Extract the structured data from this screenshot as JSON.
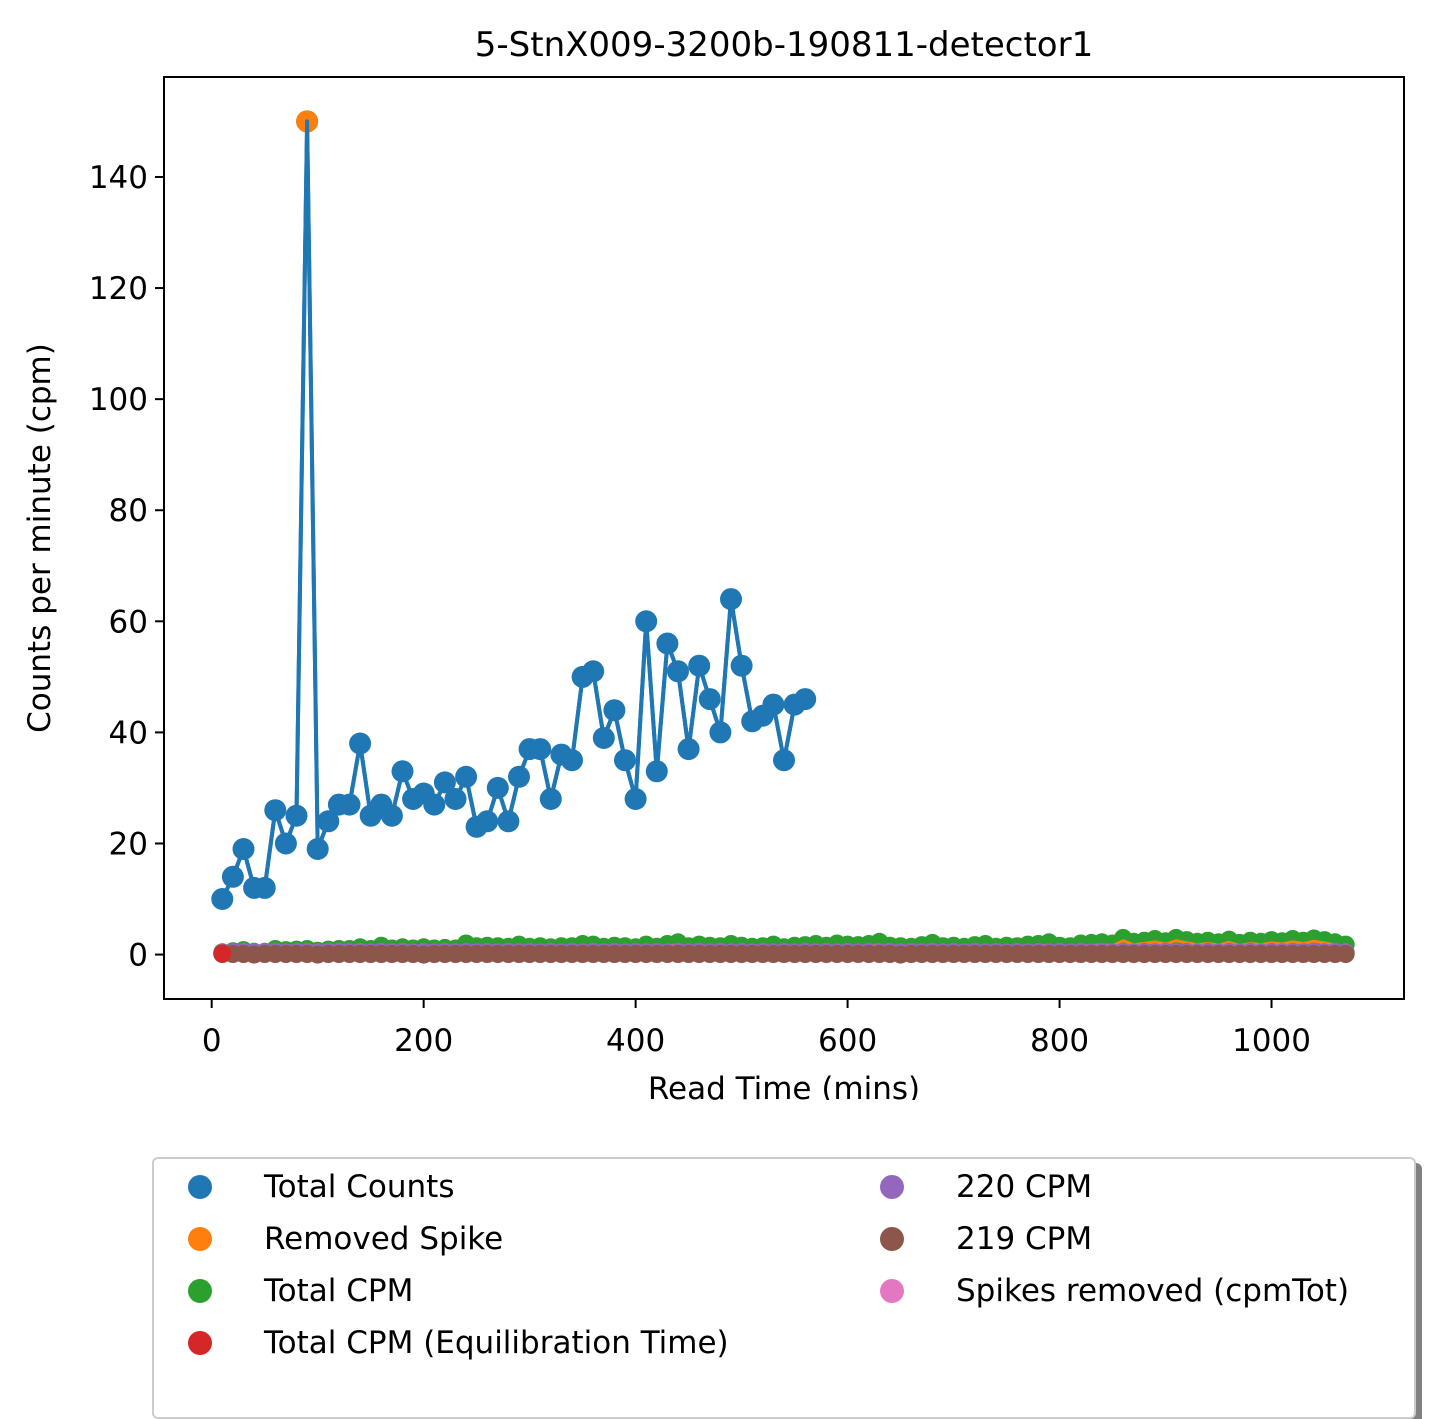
{
  "chart_data": {
    "type": "line",
    "title": "5-StnX009-3200b-190811-detector1",
    "xlabel": "Read Time (mins)",
    "ylabel": "Counts per minute (cpm)",
    "xlim": [
      -45,
      1125
    ],
    "ylim": [
      -8,
      158
    ],
    "xticks": [
      0,
      200,
      400,
      600,
      800,
      1000
    ],
    "yticks": [
      0,
      20,
      40,
      60,
      80,
      100,
      120,
      140
    ],
    "legend_position": "below",
    "series": [
      {
        "name": "Total Counts",
        "color": "#1f77b4",
        "style": "line+markers",
        "x": [
          10,
          20,
          30,
          40,
          50,
          60,
          70,
          80,
          90,
          100,
          110,
          120,
          130,
          140,
          150,
          160,
          170,
          180,
          190,
          200,
          210,
          220,
          230,
          240,
          250,
          260,
          270,
          280,
          290,
          300,
          310,
          320,
          330,
          340,
          350,
          360,
          370,
          380,
          390,
          400,
          410,
          420,
          430,
          440,
          450,
          460,
          470,
          480,
          490,
          500,
          510,
          520,
          530,
          540,
          550,
          560
        ],
        "y": [
          10,
          14,
          19,
          12,
          12,
          26,
          20,
          25,
          150,
          19,
          24,
          27,
          27,
          38,
          25,
          27,
          25,
          33,
          28,
          29,
          27,
          31,
          28,
          32,
          23,
          24,
          30,
          24,
          32,
          37,
          37,
          28,
          36,
          35,
          50,
          51,
          39,
          44,
          35,
          28,
          60,
          33,
          56,
          51,
          37,
          52,
          46,
          40,
          64,
          52,
          42,
          43,
          45,
          35,
          45,
          46
        ]
      },
      {
        "name": "Removed Spike",
        "color": "#ff7f0e",
        "style": "markers",
        "x": [
          90
        ],
        "y": [
          150
        ]
      },
      {
        "name": "Total CPM",
        "color": "#2ca02c",
        "style": "line+markers",
        "x": [
          10,
          20,
          30,
          40,
          50,
          60,
          70,
          80,
          90,
          100,
          110,
          120,
          130,
          140,
          150,
          160,
          170,
          180,
          190,
          200,
          210,
          220,
          230,
          240,
          250,
          260,
          270,
          280,
          290,
          300,
          310,
          320,
          330,
          340,
          350,
          360,
          370,
          380,
          390,
          400,
          410,
          420,
          430,
          440,
          450,
          460,
          470,
          480,
          490,
          500,
          510,
          520,
          530,
          540,
          550,
          560,
          570,
          580,
          590,
          600,
          610,
          620,
          630,
          640,
          650,
          660,
          670,
          680,
          690,
          700,
          710,
          720,
          730,
          740,
          750,
          760,
          770,
          780,
          790,
          800,
          810,
          820,
          830,
          840,
          850,
          860,
          870,
          880,
          890,
          900,
          910,
          920,
          930,
          940,
          950,
          960,
          970,
          980,
          990,
          1000,
          1010,
          1020,
          1030,
          1040,
          1050,
          1060,
          1070
        ],
        "y": [
          0.4,
          0.6,
          0.8,
          0.5,
          0.5,
          1.0,
          0.8,
          0.9,
          1.0,
          0.7,
          0.9,
          1.0,
          1.0,
          1.3,
          1.0,
          1.6,
          1.1,
          1.3,
          1.1,
          1.3,
          1.1,
          1.2,
          1.1,
          2.0,
          1.5,
          1.6,
          1.5,
          1.4,
          1.8,
          1.4,
          1.5,
          1.3,
          1.5,
          1.5,
          1.9,
          1.8,
          1.4,
          1.6,
          1.5,
          1.3,
          1.8,
          1.4,
          1.9,
          2.2,
          1.5,
          1.8,
          1.6,
          1.5,
          1.9,
          1.6,
          1.4,
          1.5,
          1.8,
          1.3,
          1.6,
          1.7,
          1.9,
          1.6,
          2.0,
          1.8,
          1.7,
          1.9,
          2.3,
          1.6,
          1.5,
          1.4,
          1.7,
          2.1,
          1.5,
          1.6,
          1.4,
          1.7,
          1.9,
          1.4,
          1.6,
          1.5,
          1.8,
          1.9,
          2.2,
          1.6,
          1.5,
          2.0,
          2.1,
          2.2,
          2.0,
          3.0,
          2.3,
          2.5,
          2.8,
          2.4,
          3.0,
          2.6,
          2.3,
          2.5,
          2.2,
          2.7,
          2.1,
          2.5,
          2.3,
          2.6,
          2.4,
          2.8,
          2.5,
          2.9,
          2.6,
          2.2,
          1.8
        ]
      },
      {
        "name": "Total CPM (Equilibration Time)",
        "color": "#d62728",
        "style": "markers",
        "x": [
          10
        ],
        "y": [
          0.2
        ]
      },
      {
        "name": "220 CPM",
        "color": "#9467bd",
        "style": "line+markers",
        "x": [
          10,
          20,
          30,
          40,
          50,
          60,
          70,
          80,
          90,
          100,
          110,
          120,
          130,
          140,
          150,
          160,
          170,
          180,
          190,
          200,
          210,
          220,
          230,
          240,
          250,
          260,
          270,
          280,
          290,
          300,
          310,
          320,
          330,
          340,
          350,
          360,
          370,
          380,
          390,
          400,
          410,
          420,
          430,
          440,
          450,
          460,
          470,
          480,
          490,
          500,
          510,
          520,
          530,
          540,
          550,
          560,
          570,
          580,
          590,
          600,
          610,
          620,
          630,
          640,
          650,
          660,
          670,
          680,
          690,
          700,
          710,
          720,
          730,
          740,
          750,
          760,
          770,
          780,
          790,
          800,
          810,
          820,
          830,
          840,
          850,
          860,
          870,
          880,
          890,
          900,
          910,
          920,
          930,
          940,
          950,
          960,
          970,
          980,
          990,
          1000,
          1010,
          1020,
          1030,
          1040,
          1050,
          1060,
          1070
        ],
        "y": [
          0.3,
          0.4,
          0.5,
          0.4,
          0.4,
          0.5,
          0.4,
          0.5,
          0.5,
          0.4,
          0.5,
          0.5,
          0.5,
          0.5,
          0.4,
          0.5,
          0.4,
          0.5,
          0.4,
          0.5,
          0.4,
          0.5,
          0.4,
          0.5,
          0.4,
          0.5,
          0.4,
          0.5,
          0.4,
          0.5,
          0.4,
          0.5,
          0.4,
          0.5,
          0.4,
          0.5,
          0.4,
          0.5,
          0.4,
          0.5,
          0.4,
          0.5,
          0.4,
          0.5,
          0.4,
          0.5,
          0.4,
          0.5,
          0.4,
          0.5,
          0.4,
          0.5,
          0.4,
          0.5,
          0.4,
          0.5,
          0.4,
          0.5,
          0.4,
          0.5,
          0.4,
          0.5,
          0.4,
          0.5,
          0.4,
          0.5,
          0.4,
          0.5,
          0.4,
          0.5,
          0.4,
          0.5,
          0.4,
          0.5,
          0.4,
          0.5,
          0.4,
          0.5,
          0.4,
          0.5,
          0.4,
          0.5,
          0.4,
          0.5,
          0.4,
          0.5,
          0.4,
          0.5,
          0.4,
          0.5,
          0.4,
          0.5,
          0.4,
          0.5,
          0.4,
          0.5,
          0.4,
          0.5,
          0.4,
          0.5,
          0.4,
          0.5,
          0.4,
          0.5,
          0.4,
          0.5,
          0.4
        ]
      },
      {
        "name": "219 CPM",
        "color": "#8c564b",
        "style": "line+markers",
        "x": [
          10,
          20,
          30,
          40,
          50,
          60,
          70,
          80,
          90,
          100,
          110,
          120,
          130,
          140,
          150,
          160,
          170,
          180,
          190,
          200,
          210,
          220,
          230,
          240,
          250,
          260,
          270,
          280,
          290,
          300,
          310,
          320,
          330,
          340,
          350,
          360,
          370,
          380,
          390,
          400,
          410,
          420,
          430,
          440,
          450,
          460,
          470,
          480,
          490,
          500,
          510,
          520,
          530,
          540,
          550,
          560,
          570,
          580,
          590,
          600,
          610,
          620,
          630,
          640,
          650,
          660,
          670,
          680,
          690,
          700,
          710,
          720,
          730,
          740,
          750,
          760,
          770,
          780,
          790,
          800,
          810,
          820,
          830,
          840,
          850,
          860,
          870,
          880,
          890,
          900,
          910,
          920,
          930,
          940,
          950,
          960,
          970,
          980,
          990,
          1000,
          1010,
          1020,
          1030,
          1040,
          1050,
          1060,
          1070
        ],
        "y": [
          0.1,
          0.1,
          0.1,
          0.0,
          0.1,
          0.1,
          0.1,
          0.1,
          0.1,
          0.0,
          0.1,
          0.1,
          0.1,
          0.1,
          0.1,
          0.1,
          0.1,
          0.1,
          0.1,
          0.0,
          0.1,
          0.1,
          0.1,
          0.1,
          0.1,
          0.1,
          0.1,
          0.1,
          0.1,
          0.1,
          0.1,
          0.1,
          0.1,
          0.1,
          0.1,
          0.1,
          0.1,
          0.1,
          0.1,
          0.1,
          0.1,
          0.1,
          0.1,
          0.1,
          0.1,
          0.1,
          0.1,
          0.1,
          0.1,
          0.1,
          0.1,
          0.1,
          0.1,
          0.1,
          0.1,
          0.1,
          0.1,
          0.1,
          0.1,
          0.1,
          0.1,
          0.1,
          0.1,
          0.1,
          0.0,
          0.1,
          0.1,
          0.1,
          0.1,
          0.1,
          0.1,
          0.1,
          0.1,
          0.1,
          0.1,
          0.1,
          0.1,
          0.1,
          0.1,
          0.1,
          0.1,
          0.1,
          0.1,
          0.1,
          0.1,
          0.1,
          0.1,
          0.1,
          0.1,
          0.1,
          0.1,
          0.1,
          0.1,
          0.1,
          0.1,
          0.1,
          0.1,
          0.1,
          0.1,
          0.1,
          0.1,
          0.1,
          0.1,
          0.1,
          0.1,
          0.1,
          0.1
        ]
      },
      {
        "name": "Spikes removed (cpmTot)",
        "color": "#e377c2",
        "style": "markers",
        "x": [],
        "y": []
      },
      {
        "name": "",
        "color": "#ff7f0e",
        "style": "line",
        "x": [
          10,
          20,
          30,
          40,
          50,
          60,
          70,
          80,
          90,
          100,
          110,
          120,
          130,
          140,
          150,
          160,
          170,
          180,
          190,
          200,
          210,
          220,
          230,
          240,
          250,
          260,
          270,
          280,
          290,
          300,
          310,
          320,
          330,
          340,
          350,
          360,
          370,
          380,
          390,
          400,
          410,
          420,
          430,
          440,
          450,
          460,
          470,
          480,
          490,
          500,
          510,
          520,
          530,
          540,
          550,
          560,
          570,
          580,
          590,
          600,
          610,
          620,
          630,
          640,
          650,
          660,
          670,
          680,
          690,
          700,
          710,
          720,
          730,
          740,
          750,
          760,
          770,
          780,
          790,
          800,
          810,
          820,
          830,
          840,
          850,
          860,
          870,
          880,
          890,
          900,
          910,
          920,
          930,
          940,
          950,
          960,
          970,
          980,
          990,
          1000,
          1010,
          1020,
          1030,
          1040,
          1050,
          1060,
          1070
        ],
        "y": [
          0.4,
          0.6,
          0.8,
          0.5,
          0.5,
          1.0,
          0.8,
          0.9,
          0.9,
          0.7,
          0.9,
          1.0,
          1.0,
          1.3,
          1.0,
          1.3,
          1.1,
          1.3,
          1.1,
          1.3,
          1.1,
          1.2,
          1.1,
          1.7,
          1.2,
          1.3,
          1.2,
          1.1,
          1.4,
          1.1,
          1.2,
          1.0,
          1.2,
          1.2,
          1.5,
          1.4,
          1.1,
          1.3,
          1.2,
          1.0,
          1.4,
          1.1,
          1.5,
          1.8,
          1.2,
          1.4,
          1.3,
          1.2,
          1.5,
          1.3,
          1.1,
          1.2,
          1.4,
          1.0,
          1.3,
          1.4,
          1.5,
          1.3,
          1.6,
          1.4,
          1.3,
          1.5,
          1.8,
          1.2,
          1.1,
          1.0,
          1.3,
          1.7,
          1.1,
          1.2,
          1.0,
          1.3,
          1.5,
          1.0,
          1.2,
          1.1,
          1.4,
          1.5,
          1.7,
          1.2,
          1.1,
          1.6,
          1.6,
          1.8,
          1.6,
          2.5,
          1.8,
          2.0,
          2.3,
          1.9,
          2.5,
          2.1,
          1.8,
          2.0,
          1.7,
          2.2,
          1.6,
          2.0,
          1.8,
          2.1,
          1.9,
          2.3,
          2.0,
          2.4,
          2.1,
          1.7,
          1.3
        ]
      }
    ]
  },
  "legend": {
    "items": [
      {
        "label": "Total Counts",
        "color": "#1f77b4"
      },
      {
        "label": "Removed Spike",
        "color": "#ff7f0e"
      },
      {
        "label": "Total CPM",
        "color": "#2ca02c"
      },
      {
        "label": "Total CPM (Equilibration Time)",
        "color": "#d62728"
      },
      {
        "label": "220 CPM",
        "color": "#9467bd"
      },
      {
        "label": "219 CPM",
        "color": "#8c564b"
      },
      {
        "label": "Spikes removed (cpmTot)",
        "color": "#e377c2"
      }
    ]
  }
}
